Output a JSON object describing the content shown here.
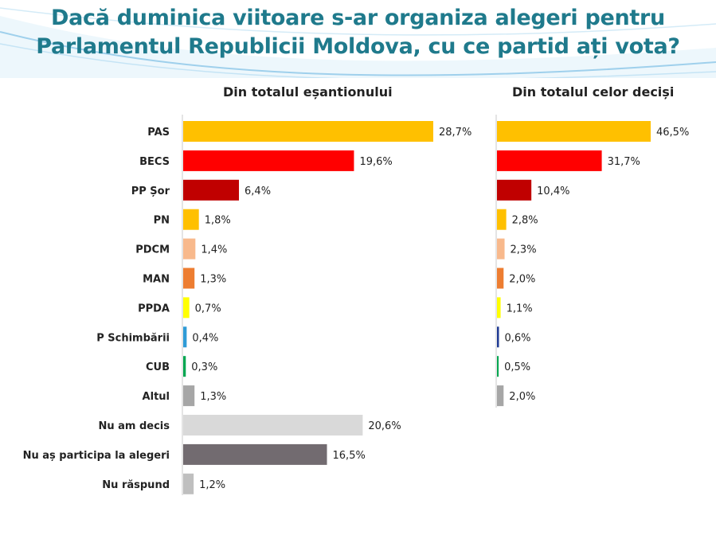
{
  "title": {
    "line1": "Dacă duminica viitoare s-ar organiza alegeri pentru",
    "line2": "Parlamentul Republicii Moldova, cu ce partid ați vota?"
  },
  "chart_data": [
    {
      "type": "bar",
      "orientation": "horizontal",
      "title": "Din totalul eșantionului",
      "categories": [
        "PAS",
        "BECS",
        "PP Șor",
        "PN",
        "PDCM",
        "MAN",
        "PPDA",
        "P Schimbării",
        "CUB",
        "Altul",
        "Nu am decis",
        "Nu aș participa la alegeri",
        "Nu răspund"
      ],
      "values": [
        28.7,
        19.6,
        6.4,
        1.8,
        1.4,
        1.3,
        0.7,
        0.4,
        0.3,
        1.3,
        20.6,
        16.5,
        1.2
      ],
      "value_labels": [
        "28,7%",
        "19,6%",
        "6,4%",
        "1,8%",
        "1,4%",
        "1,3%",
        "0,7%",
        "0,4%",
        "0,3%",
        "1,3%",
        "20,6%",
        "16,5%",
        "1,2%"
      ],
      "colors": [
        "#ffc000",
        "#ff0000",
        "#c00000",
        "#ffc000",
        "#f8b98c",
        "#ed7d31",
        "#ffff00",
        "#2e9bd6",
        "#00a650",
        "#a6a6a6",
        "#d9d9d9",
        "#726b70",
        "#bfbfbf"
      ],
      "xlim": [
        0,
        30
      ],
      "grid": false,
      "legend": "none"
    },
    {
      "type": "bar",
      "orientation": "horizontal",
      "title": "Din totalul celor deciși",
      "categories": [
        "PAS",
        "BECS",
        "PP Șor",
        "PN",
        "PDCM",
        "MAN",
        "PPDA",
        "P Schimbării",
        "CUB",
        "Altul"
      ],
      "values": [
        46.5,
        31.7,
        10.4,
        2.8,
        2.3,
        2.0,
        1.1,
        0.6,
        0.5,
        2.0
      ],
      "value_labels": [
        "46,5%",
        "31,7%",
        "10,4%",
        "2,8%",
        "2,3%",
        "2,0%",
        "1,1%",
        "0,6%",
        "0,5%",
        "2,0%"
      ],
      "colors": [
        "#ffc000",
        "#ff0000",
        "#c00000",
        "#ffc000",
        "#f8b98c",
        "#ed7d31",
        "#ffff00",
        "#1f3a93",
        "#00a650",
        "#a6a6a6"
      ],
      "xlim": [
        0,
        50
      ],
      "grid": false,
      "legend": "none"
    }
  ]
}
